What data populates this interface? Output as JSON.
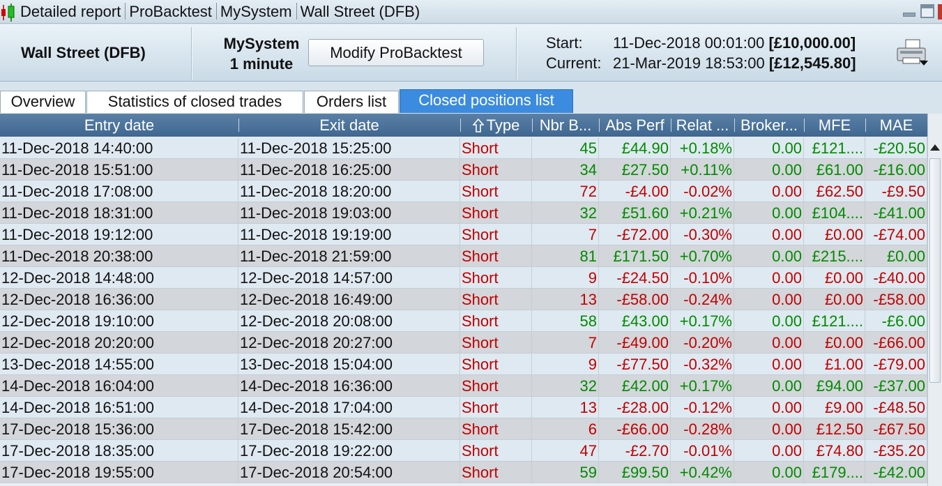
{
  "window": {
    "title_parts": [
      "Detailed report",
      "ProBacktest",
      "MySystem",
      "Wall Street (DFB)"
    ]
  },
  "header": {
    "instrument": "Wall Street (DFB)",
    "system_name": "MySystem",
    "timeframe": "1 minute",
    "modify_label": "Modify ProBacktest",
    "start_label": "Start:",
    "start_date": "11-Dec-2018 00:01:00",
    "start_capital": "[£10,000.00]",
    "current_label": "Current:",
    "current_date": "21-Mar-2019 18:53:00",
    "current_capital": "[£12,545.80]"
  },
  "tabs": [
    "Overview",
    "Statistics of closed trades",
    "Orders list",
    "Closed positions list"
  ],
  "active_tab": "Closed positions list",
  "table": {
    "columns": [
      "Entry date",
      "Exit date",
      "Type",
      "Nbr B...",
      "Abs Perf",
      "Relat ...",
      "Broker...",
      "MFE",
      "MAE"
    ],
    "sort_icon": "sort-up-icon",
    "rows": [
      {
        "entry": "11-Dec-2018 14:40:00",
        "exit": "11-Dec-2018 15:25:00",
        "type": "Short",
        "nbr": "45",
        "abs": "£44.90",
        "rel": "+0.18%",
        "broker": "0.00",
        "mfe": "£121....",
        "mae": "-£20.50",
        "win": true
      },
      {
        "entry": "11-Dec-2018 15:51:00",
        "exit": "11-Dec-2018 16:25:00",
        "type": "Short",
        "nbr": "34",
        "abs": "£27.50",
        "rel": "+0.11%",
        "broker": "0.00",
        "mfe": "£61.00",
        "mae": "-£16.00",
        "win": true
      },
      {
        "entry": "11-Dec-2018 17:08:00",
        "exit": "11-Dec-2018 18:20:00",
        "type": "Short",
        "nbr": "72",
        "abs": "-£4.00",
        "rel": "-0.02%",
        "broker": "0.00",
        "mfe": "£62.50",
        "mae": "-£9.50",
        "win": false
      },
      {
        "entry": "11-Dec-2018 18:31:00",
        "exit": "11-Dec-2018 19:03:00",
        "type": "Short",
        "nbr": "32",
        "abs": "£51.60",
        "rel": "+0.21%",
        "broker": "0.00",
        "mfe": "£104....",
        "mae": "-£41.00",
        "win": true
      },
      {
        "entry": "11-Dec-2018 19:12:00",
        "exit": "11-Dec-2018 19:19:00",
        "type": "Short",
        "nbr": "7",
        "abs": "-£72.00",
        "rel": "-0.30%",
        "broker": "0.00",
        "mfe": "£0.00",
        "mae": "-£74.00",
        "win": false
      },
      {
        "entry": "11-Dec-2018 20:38:00",
        "exit": "11-Dec-2018 21:59:00",
        "type": "Short",
        "nbr": "81",
        "abs": "£171.50",
        "rel": "+0.70%",
        "broker": "0.00",
        "mfe": "£215....",
        "mae": "£0.00",
        "win": true
      },
      {
        "entry": "12-Dec-2018 14:48:00",
        "exit": "12-Dec-2018 14:57:00",
        "type": "Short",
        "nbr": "9",
        "abs": "-£24.50",
        "rel": "-0.10%",
        "broker": "0.00",
        "mfe": "£0.00",
        "mae": "-£40.00",
        "win": false
      },
      {
        "entry": "12-Dec-2018 16:36:00",
        "exit": "12-Dec-2018 16:49:00",
        "type": "Short",
        "nbr": "13",
        "abs": "-£58.00",
        "rel": "-0.24%",
        "broker": "0.00",
        "mfe": "£0.00",
        "mae": "-£58.00",
        "win": false
      },
      {
        "entry": "12-Dec-2018 19:10:00",
        "exit": "12-Dec-2018 20:08:00",
        "type": "Short",
        "nbr": "58",
        "abs": "£43.00",
        "rel": "+0.17%",
        "broker": "0.00",
        "mfe": "£121....",
        "mae": "-£6.00",
        "win": true
      },
      {
        "entry": "12-Dec-2018 20:20:00",
        "exit": "12-Dec-2018 20:27:00",
        "type": "Short",
        "nbr": "7",
        "abs": "-£49.00",
        "rel": "-0.20%",
        "broker": "0.00",
        "mfe": "£0.00",
        "mae": "-£66.00",
        "win": false
      },
      {
        "entry": "13-Dec-2018 14:55:00",
        "exit": "13-Dec-2018 15:04:00",
        "type": "Short",
        "nbr": "9",
        "abs": "-£77.50",
        "rel": "-0.32%",
        "broker": "0.00",
        "mfe": "£1.00",
        "mae": "-£79.00",
        "win": false
      },
      {
        "entry": "14-Dec-2018 16:04:00",
        "exit": "14-Dec-2018 16:36:00",
        "type": "Short",
        "nbr": "32",
        "abs": "£42.00",
        "rel": "+0.17%",
        "broker": "0.00",
        "mfe": "£94.00",
        "mae": "-£37.00",
        "win": true
      },
      {
        "entry": "14-Dec-2018 16:51:00",
        "exit": "14-Dec-2018 17:04:00",
        "type": "Short",
        "nbr": "13",
        "abs": "-£28.00",
        "rel": "-0.12%",
        "broker": "0.00",
        "mfe": "£9.00",
        "mae": "-£48.50",
        "win": false
      },
      {
        "entry": "17-Dec-2018 15:36:00",
        "exit": "17-Dec-2018 15:42:00",
        "type": "Short",
        "nbr": "6",
        "abs": "-£66.00",
        "rel": "-0.28%",
        "broker": "0.00",
        "mfe": "£12.50",
        "mae": "-£67.50",
        "win": false
      },
      {
        "entry": "17-Dec-2018 18:35:00",
        "exit": "17-Dec-2018 19:22:00",
        "type": "Short",
        "nbr": "47",
        "abs": "-£2.70",
        "rel": "-0.01%",
        "broker": "0.00",
        "mfe": "£74.80",
        "mae": "-£35.20",
        "win": false
      },
      {
        "entry": "17-Dec-2018 19:55:00",
        "exit": "17-Dec-2018 20:54:00",
        "type": "Short",
        "nbr": "59",
        "abs": "£99.50",
        "rel": "+0.42%",
        "broker": "0.00",
        "mfe": "£179....",
        "mae": "-£42.00",
        "win": true
      }
    ]
  },
  "colors": {
    "profit": "#008a00",
    "loss": "#c00000",
    "active_tab": "#3b8be0",
    "header": "#3e6790"
  }
}
